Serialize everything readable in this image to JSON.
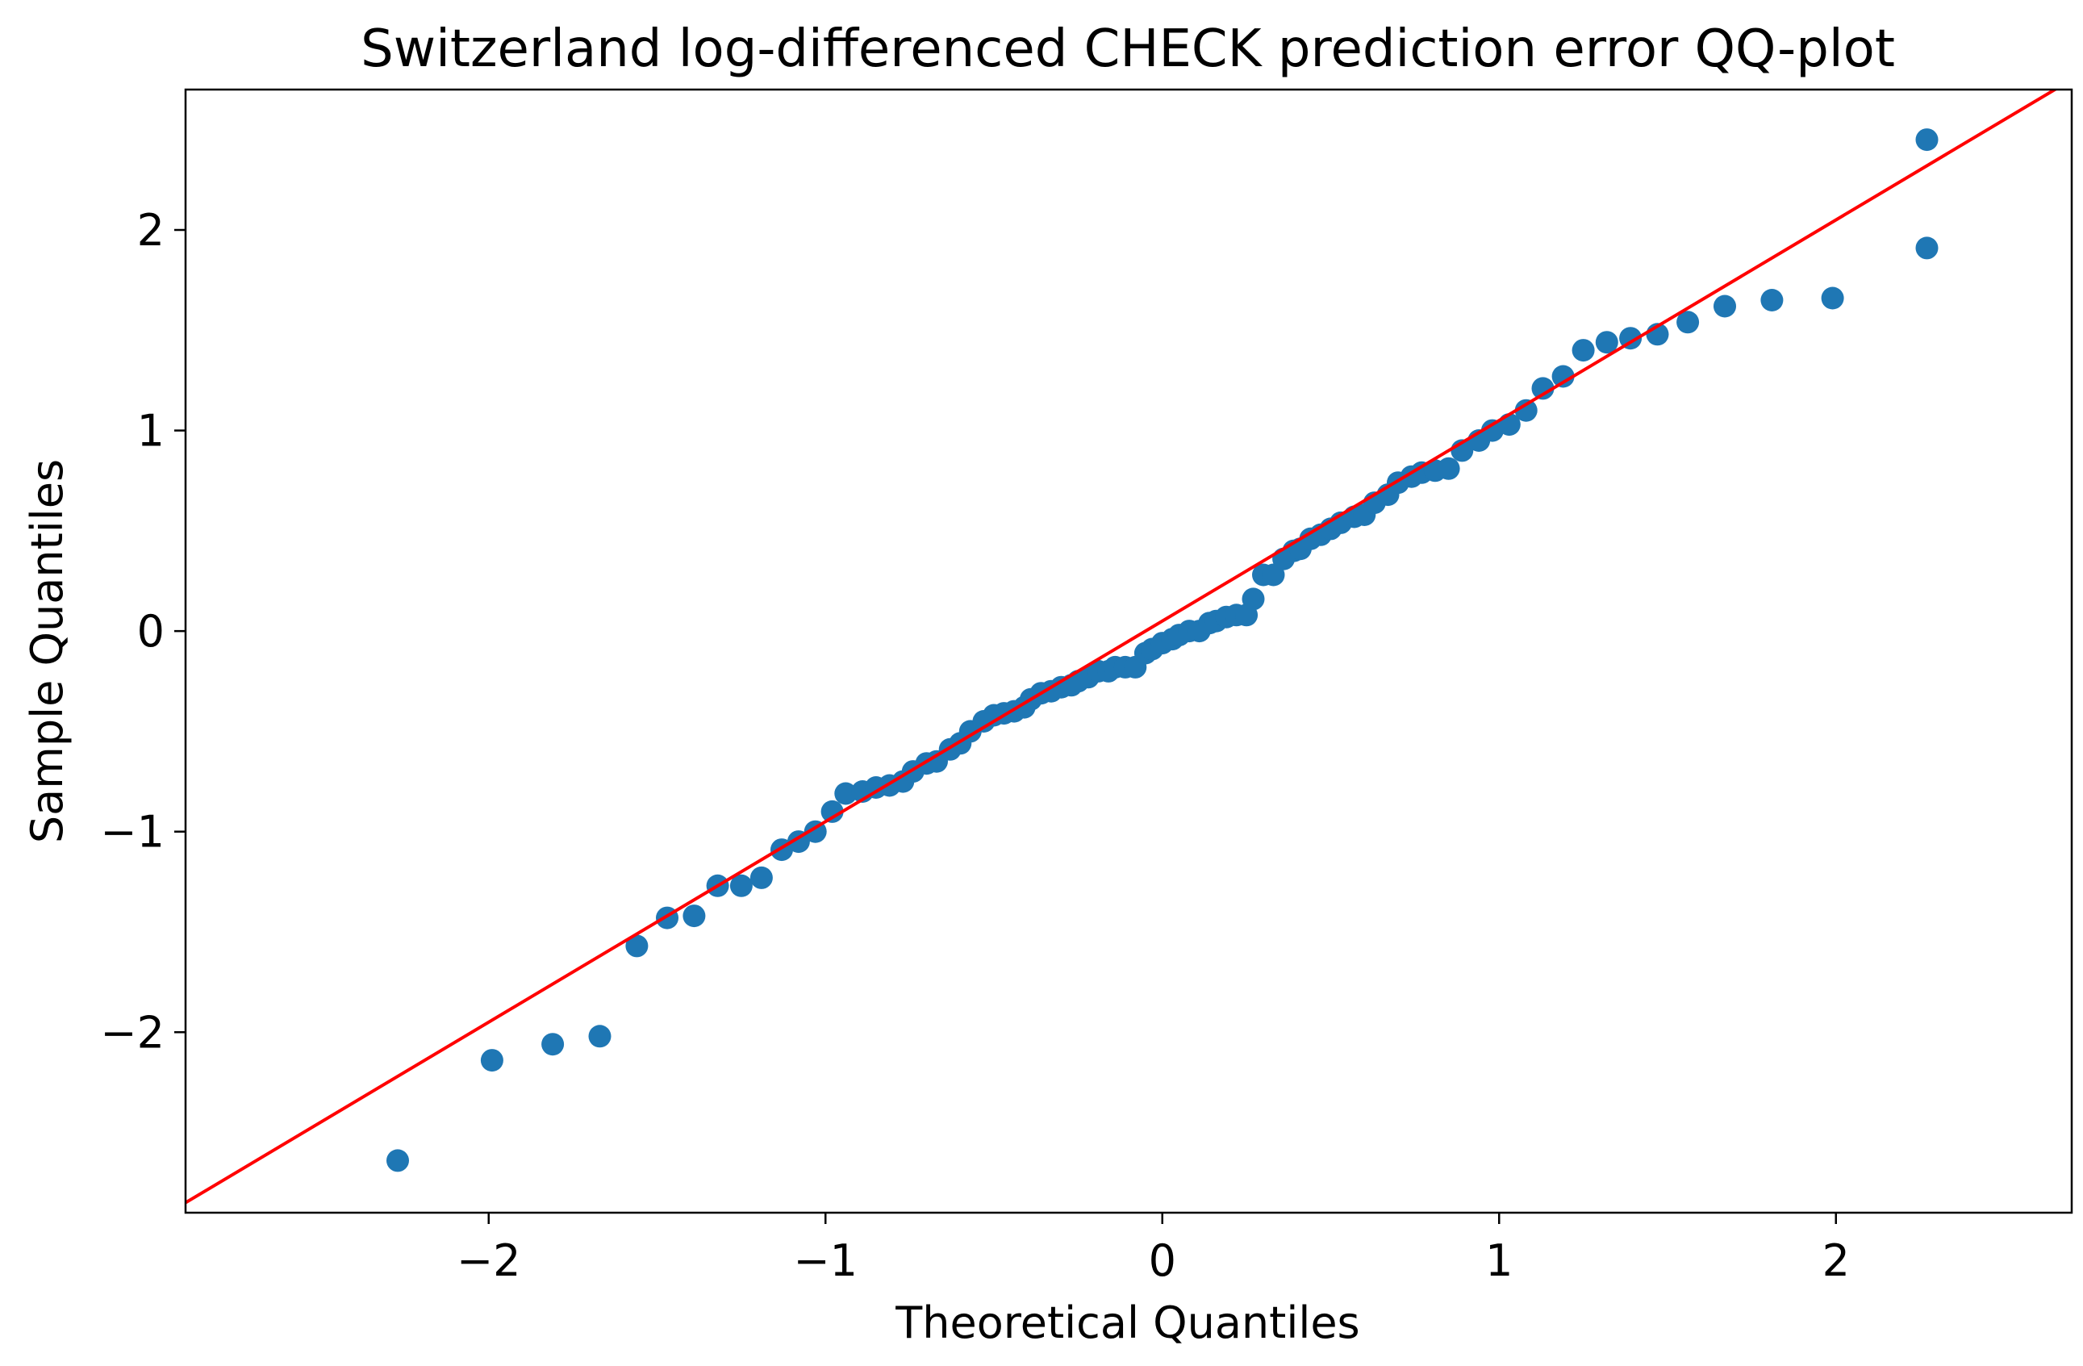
{
  "chart_data": {
    "type": "scatter",
    "title": "Switzerland log-differenced CHECK prediction error QQ-plot",
    "xlabel": "Theoretical Quantiles",
    "ylabel": "Sample Quantiles",
    "xlim": [
      -2.9,
      2.7
    ],
    "ylim": [
      -2.9,
      2.7
    ],
    "grid": false,
    "marker_color": "#1f77b4",
    "line_color": "#ff0000",
    "xticks": [
      {
        "value": -2,
        "label": "−2"
      },
      {
        "value": -1,
        "label": "−1"
      },
      {
        "value": 0,
        "label": "0"
      },
      {
        "value": 1,
        "label": "1"
      },
      {
        "value": 2,
        "label": "2"
      }
    ],
    "yticks": [
      {
        "value": -2,
        "label": "−2"
      },
      {
        "value": -1,
        "label": "−1"
      },
      {
        "value": 0,
        "label": "0"
      },
      {
        "value": 1,
        "label": "1"
      },
      {
        "value": 2,
        "label": "2"
      }
    ],
    "reference_line": {
      "slope": 1.0,
      "intercept": 0.05
    },
    "points": [
      [
        -2.27,
        -2.64
      ],
      [
        -1.99,
        -2.14
      ],
      [
        -1.81,
        -2.06
      ],
      [
        -1.67,
        -2.02
      ],
      [
        -1.56,
        -1.57
      ],
      [
        -1.47,
        -1.43
      ],
      [
        -1.39,
        -1.42
      ],
      [
        -1.32,
        -1.27
      ],
      [
        -1.25,
        -1.27
      ],
      [
        -1.19,
        -1.23
      ],
      [
        -1.13,
        -1.09
      ],
      [
        -1.08,
        -1.05
      ],
      [
        -1.03,
        -1.0
      ],
      [
        -0.98,
        -0.9
      ],
      [
        -0.94,
        -0.81
      ],
      [
        -0.89,
        -0.8
      ],
      [
        -0.85,
        -0.78
      ],
      [
        -0.81,
        -0.77
      ],
      [
        -0.77,
        -0.75
      ],
      [
        -0.74,
        -0.7
      ],
      [
        -0.7,
        -0.66
      ],
      [
        -0.67,
        -0.65
      ],
      [
        -0.63,
        -0.59
      ],
      [
        -0.6,
        -0.56
      ],
      [
        -0.57,
        -0.5
      ],
      [
        -0.53,
        -0.45
      ],
      [
        -0.5,
        -0.42
      ],
      [
        -0.47,
        -0.41
      ],
      [
        -0.44,
        -0.4
      ],
      [
        -0.41,
        -0.38
      ],
      [
        -0.39,
        -0.34
      ],
      [
        -0.36,
        -0.31
      ],
      [
        -0.33,
        -0.3
      ],
      [
        -0.3,
        -0.28
      ],
      [
        -0.27,
        -0.27
      ],
      [
        -0.25,
        -0.25
      ],
      [
        -0.22,
        -0.23
      ],
      [
        -0.19,
        -0.2
      ],
      [
        -0.16,
        -0.2
      ],
      [
        -0.14,
        -0.18
      ],
      [
        -0.11,
        -0.18
      ],
      [
        -0.08,
        -0.18
      ],
      [
        -0.05,
        -0.11
      ],
      [
        -0.03,
        -0.09
      ],
      [
        0.0,
        -0.06
      ],
      [
        0.03,
        -0.04
      ],
      [
        0.05,
        -0.02
      ],
      [
        0.08,
        0.0
      ],
      [
        0.11,
        0.0
      ],
      [
        0.14,
        0.04
      ],
      [
        0.16,
        0.05
      ],
      [
        0.19,
        0.07
      ],
      [
        0.22,
        0.08
      ],
      [
        0.25,
        0.08
      ],
      [
        0.27,
        0.16
      ],
      [
        0.3,
        0.28
      ],
      [
        0.33,
        0.28
      ],
      [
        0.36,
        0.36
      ],
      [
        0.39,
        0.4
      ],
      [
        0.41,
        0.41
      ],
      [
        0.44,
        0.46
      ],
      [
        0.47,
        0.48
      ],
      [
        0.5,
        0.51
      ],
      [
        0.53,
        0.54
      ],
      [
        0.57,
        0.57
      ],
      [
        0.6,
        0.58
      ],
      [
        0.63,
        0.64
      ],
      [
        0.67,
        0.68
      ],
      [
        0.7,
        0.74
      ],
      [
        0.74,
        0.77
      ],
      [
        0.77,
        0.79
      ],
      [
        0.81,
        0.8
      ],
      [
        0.85,
        0.81
      ],
      [
        0.89,
        0.9
      ],
      [
        0.94,
        0.95
      ],
      [
        0.98,
        1.0
      ],
      [
        1.03,
        1.03
      ],
      [
        1.08,
        1.1
      ],
      [
        1.13,
        1.21
      ],
      [
        1.19,
        1.27
      ],
      [
        1.25,
        1.4
      ],
      [
        1.32,
        1.44
      ],
      [
        1.39,
        1.46
      ],
      [
        1.47,
        1.48
      ],
      [
        1.56,
        1.54
      ],
      [
        1.67,
        1.62
      ],
      [
        1.81,
        1.65
      ],
      [
        1.99,
        1.66
      ],
      [
        2.27,
        1.91
      ],
      [
        2.27,
        2.45
      ]
    ]
  }
}
